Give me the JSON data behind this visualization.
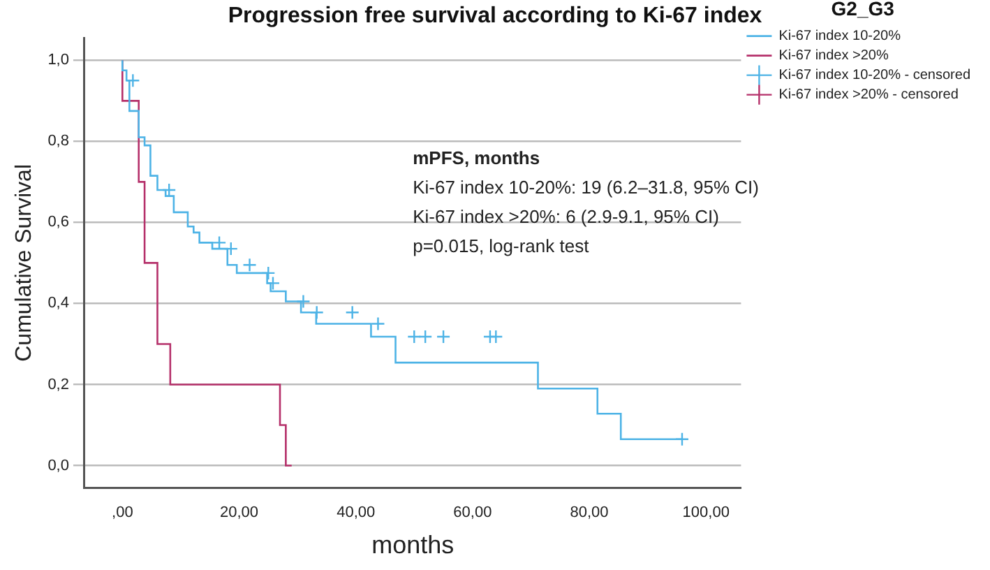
{
  "chart_data": {
    "type": "step",
    "title": "Progression free survival according to Ki-67 index",
    "xlabel": "months",
    "ylabel": "Cumulative Survival",
    "legend_title": "G2_G3",
    "xlim": [
      -6.5,
      106
    ],
    "ylim": [
      -0.055,
      1.055
    ],
    "xticks": [
      {
        "value": 0,
        "label": ",00"
      },
      {
        "value": 20,
        "label": "20,00"
      },
      {
        "value": 40,
        "label": "40,00"
      },
      {
        "value": 60,
        "label": "60,00"
      },
      {
        "value": 80,
        "label": "80,00"
      },
      {
        "value": 100,
        "label": "100,00"
      }
    ],
    "yticks": [
      {
        "value": 0,
        "label": "0,0"
      },
      {
        "value": 0.2,
        "label": "0,2"
      },
      {
        "value": 0.4,
        "label": "0,4"
      },
      {
        "value": 0.6,
        "label": "0,6"
      },
      {
        "value": 0.8,
        "label": "0,8"
      },
      {
        "value": 1,
        "label": "1,0"
      }
    ],
    "grid": "y",
    "legend": "right",
    "annotations": [
      "mPFS, months",
      "Ki-67 index 10-20%: 19 (6.2–31.8, 95% CI)",
      "Ki-67 index >20%: 6 (2.9-9.1, 95% CI)",
      "p=0.015, log-rank test"
    ],
    "series": [
      {
        "name": "Ki-67 index 10-20%",
        "color": "#4db3e6",
        "x": [
          0,
          0.7,
          1.2,
          2.8,
          3.8,
          4.8,
          6,
          7.4,
          8.8,
          11.2,
          12.2,
          13.2,
          15.4,
          18,
          19.6,
          24.8,
          25.4,
          28,
          30.6,
          33.2,
          42.6,
          46.8,
          71.2,
          81.4,
          85.4,
          92.8,
          95.9
        ],
        "values": [
          1,
          0.975,
          0.95,
          0.875,
          0.81,
          0.79,
          0.715,
          0.68,
          0.665,
          0.625,
          0.59,
          0.575,
          0.55,
          0.535,
          0.495,
          0.475,
          0.45,
          0.43,
          0.405,
          0.378,
          0.35,
          0.318,
          0.254,
          0.19,
          0.128,
          0.065,
          0.065
        ]
      },
      {
        "name": "Ki-67 index >20%",
        "color": "#b5306a",
        "x": [
          0,
          2.8,
          3.8,
          6,
          8.2,
          27,
          28,
          29
        ],
        "values": [
          1,
          0.9,
          0.7,
          0.5,
          0.3,
          0.2,
          0.1,
          0
        ]
      },
      {
        "name": "Ki-67 index 10-20% - censored",
        "type": "scatter",
        "marker": "cross",
        "color": "#4db3e6",
        "x": [
          1.8,
          8,
          16.6,
          18.6,
          21.8,
          25,
          25.8,
          31,
          33.3,
          39.4,
          43.8,
          50,
          51.9,
          55,
          63,
          64,
          95.9
        ],
        "values": [
          0.95,
          0.68,
          0.55,
          0.535,
          0.495,
          0.475,
          0.45,
          0.405,
          0.378,
          0.378,
          0.35,
          0.318,
          0.318,
          0.318,
          0.318,
          0.318,
          0.065
        ]
      },
      {
        "name": "Ki-67 index >20% - censored",
        "type": "scatter",
        "marker": "cross",
        "color": "#b5306a"
      }
    ]
  }
}
